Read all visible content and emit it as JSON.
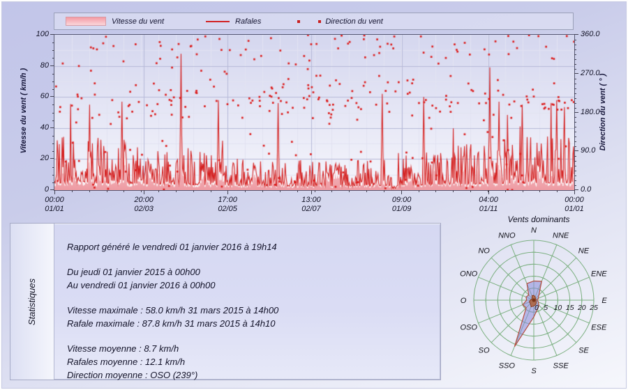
{
  "legend": {
    "items": [
      {
        "label": "Vitesse du vent",
        "marker": "pink-area-swatch"
      },
      {
        "label": "Rafales",
        "marker": "red-line-swatch"
      },
      {
        "label": "Direction du vent",
        "marker": "red-square-dots"
      }
    ]
  },
  "chart_data": [
    {
      "type": "line",
      "subtype": "area + line + scatter wind time series",
      "x_axis": {
        "start": "00:00 01/01 (2015)",
        "end": "00:00 01/01 (2016)",
        "ticks": [
          {
            "time": "00:00",
            "date": "01/01",
            "frac": 0
          },
          {
            "time": "20:00",
            "date": "02/03",
            "frac": 0.172
          },
          {
            "time": "17:00",
            "date": "02/05",
            "frac": 0.333
          },
          {
            "time": "13:00",
            "date": "02/07",
            "frac": 0.494
          },
          {
            "time": "09:00",
            "date": "01/09",
            "frac": 0.668
          },
          {
            "time": "04:00",
            "date": "01/11",
            "frac": 0.835
          },
          {
            "time": "00:00",
            "date": "01/01",
            "frac": 1
          }
        ]
      },
      "y_left": {
        "label": "Vitesse du vent ( km/h )",
        "min": 0,
        "max": 100,
        "ticks": [
          "0",
          "20",
          "40",
          "60",
          "80",
          "100"
        ]
      },
      "y_right": {
        "label": "Direction du vent ( ° )",
        "min": 0,
        "max": 360,
        "ticks": [
          "0.0",
          "90.0",
          "180.0",
          "270.0",
          "360.0"
        ]
      },
      "series": [
        {
          "name": "Vitesse du vent",
          "type": "area",
          "color_top": "rgba(252,233,235,0.75)",
          "color_mid": "rgba(248,206,211,0.82)",
          "color_bottom": "rgba(238,150,158,0.95)",
          "edge_color": "#ffffff",
          "mean_kmh": 8.7,
          "max_kmh": 58.0,
          "max_date": "31 mars 2015 à 14h00"
        },
        {
          "name": "Rafales",
          "type": "line",
          "color": "#d42222",
          "mean_kmh": 12.1,
          "max_kmh": 87.8,
          "max_date": "31 mars 2015 à 14h10"
        },
        {
          "name": "Direction du vent",
          "type": "scatter",
          "color": "#dc1c1c",
          "mean_direction_deg": 239,
          "mean_direction": "OSO (239°)"
        }
      ],
      "grid": {
        "bg_top": "#d5d7ef",
        "bg_bottom": "#f6f6fc",
        "minor": "#e2e3f2",
        "major": "#b6b9d8",
        "v_divisions": 30
      },
      "generation": {
        "seed": 20160101,
        "samples": 740,
        "scatter_points": 330,
        "spikes": [
          {
            "frac": 0.067,
            "gust": 55
          },
          {
            "frac": 0.13,
            "gust": 57
          },
          {
            "frac": 0.244,
            "gust": 87.8
          },
          {
            "frac": 0.315,
            "gust": 58
          },
          {
            "frac": 0.43,
            "gust": 56
          },
          {
            "frac": 0.63,
            "gust": 62
          },
          {
            "frac": 0.71,
            "gust": 60
          },
          {
            "frac": 0.838,
            "gust": 79
          },
          {
            "frac": 0.855,
            "gust": 57
          },
          {
            "frac": 0.9,
            "gust": 55
          },
          {
            "frac": 0.966,
            "gust": 58
          }
        ],
        "calms": [
          {
            "frac": 0.655
          }
        ],
        "direction_clusters": [
          {
            "center_deg": 205,
            "sd": 24,
            "weight": 0.5
          },
          {
            "center_deg": 340,
            "sd": 28,
            "weight": 0.22
          },
          {
            "uniform": true,
            "weight": 0.28
          }
        ]
      }
    },
    {
      "type": "radar",
      "title": "Vents dominants",
      "directions": [
        "N",
        "NNE",
        "NE",
        "ENE",
        "E",
        "ESE",
        "SE",
        "SSE",
        "S",
        "SSO",
        "SO",
        "OSO",
        "O",
        "ONO",
        "NO",
        "NNO"
      ],
      "frequency_pct": [
        8,
        8.5,
        3,
        2,
        1.5,
        2,
        3,
        4,
        7,
        21,
        4.5,
        5,
        3,
        3.5,
        3,
        7.5
      ],
      "inner_values": [
        2,
        1.5,
        1,
        1,
        1,
        1,
        1.5,
        2,
        2.5,
        3,
        2,
        2,
        1.5,
        1,
        1,
        2
      ],
      "rings": [
        5,
        10,
        15,
        20,
        25
      ],
      "radial_labels": [
        "0",
        "5",
        "10",
        "15",
        "20",
        "25"
      ],
      "max_radius": 25,
      "colors": {
        "grid": "#7cb081",
        "fill": "rgba(138,138,218,0.55)",
        "outline": "#b44c3c",
        "inner_fill": "rgba(178,92,48,0.78)",
        "inner_outline": "#8a3c1e",
        "center_dot": "#7a3418"
      }
    }
  ],
  "stats": {
    "side_label": "Statistiques",
    "generated": "Rapport généré le vendredi 01 janvier 2016 à 19h14",
    "period_from": "Du jeudi 01 janvier 2015 à 00h00",
    "period_to": "Au vendredi 01 janvier 2016 à 00h00",
    "vmax_label": "Vitesse maximale : 58.0 km/h",
    "vmax_date": "31 mars 2015 à 14h00",
    "gmax_label": "Rafale maximale : 87.8 km/h",
    "gmax_date": "31 mars 2015 à 14h10",
    "vavg": "Vitesse moyenne : 8.7 km/h",
    "gavg": "Rafales moyenne : 12.1 km/h",
    "davg": "Direction moyenne : OSO (239°)"
  },
  "rose_title": "Vents dominants"
}
